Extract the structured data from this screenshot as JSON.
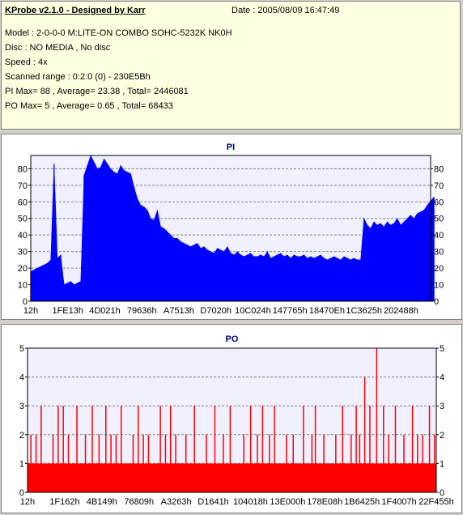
{
  "info": {
    "title": "KProbe v2.1.0 - Designed by Karr",
    "date": "Date : 2005/08/09 16:47:49",
    "lines": [
      "Model : 2-0-0-0 M:LITE-ON COMBO SOHC-5232K NK0H",
      "Disc : NO MEDIA , No disc",
      "Speed : 4x",
      "Scanned range : 0:2:0 (0) - 230E5Bh",
      "PI Max= 88 , Average= 23.38 , Total= 2446081",
      "PO Max= 5 , Average= 0.65 , Total= 68433"
    ]
  },
  "colors": {
    "pi_fill": "#0000ff",
    "po_fill": "#ff0000",
    "title_color": "#000080",
    "plot_bg": "#f0f0ff",
    "grid": "#808080"
  },
  "chart_data": [
    {
      "type": "area",
      "title": "PI",
      "ylim": [
        0,
        88
      ],
      "y_ticks": [
        0,
        10,
        20,
        30,
        40,
        50,
        60,
        70,
        80
      ],
      "x_tick_labels": [
        "12h",
        "1FE13h",
        "4D021h",
        "79636h",
        "A7513h",
        "D7020h",
        "10C024h",
        "147765h",
        "18470Eh",
        "1C3625h",
        "202488h"
      ],
      "grid": true,
      "series": [
        {
          "x": [
            0,
            0.1,
            0.2,
            0.3,
            0.4,
            0.5,
            0.6,
            0.7,
            0.8,
            0.9,
            1,
            1.1,
            1.2,
            1.3,
            1.4,
            1.5,
            1.6,
            1.7,
            1.8,
            1.9,
            2,
            2.1,
            2.2,
            2.3,
            2.4,
            2.5,
            2.6,
            2.7,
            2.8,
            2.9,
            3,
            3.1,
            3.2,
            3.3,
            3.4,
            3.5,
            3.6,
            3.7,
            3.8,
            3.9,
            4,
            4.1,
            4.2,
            4.3,
            4.4,
            4.5,
            4.6,
            4.7,
            4.8,
            4.9,
            5,
            5.1,
            5.2,
            5.3,
            5.4,
            5.5,
            5.6,
            5.7,
            5.8,
            5.9,
            6,
            6.1,
            6.2,
            6.3,
            6.4,
            6.5,
            6.6,
            6.7,
            6.8,
            6.9,
            7,
            7.1,
            7.2,
            7.3,
            7.4,
            7.5,
            7.6,
            7.7,
            7.8,
            7.9,
            8,
            8.1,
            8.2,
            8.3,
            8.4,
            8.5,
            8.6,
            8.7,
            8.8,
            8.9,
            9,
            9.1,
            9.2,
            9.3,
            9.4,
            9.5,
            9.6,
            9.7,
            9.8,
            9.9,
            10,
            10.1,
            10.2,
            10.3,
            10.4,
            10.5,
            10.6,
            10.7,
            10.8,
            10.9,
            11,
            11.1,
            11.2,
            11.3,
            11.4,
            11.5,
            11.6,
            11.7,
            11.8,
            11.9,
            12.1
          ],
          "values": [
            18,
            19,
            20,
            21,
            22,
            23,
            25,
            83,
            26,
            28,
            10,
            11,
            12,
            10,
            11,
            12,
            76,
            82,
            88,
            84,
            80,
            81,
            86,
            83,
            80,
            78,
            77,
            82,
            79,
            78,
            77,
            69,
            62,
            58,
            57,
            55,
            50,
            49,
            55,
            45,
            44,
            42,
            40,
            38,
            38,
            36,
            35,
            34,
            33,
            34,
            35,
            32,
            33,
            31,
            30,
            29,
            32,
            31,
            30,
            33,
            29,
            28,
            30,
            28,
            27,
            28,
            29,
            27,
            27,
            28,
            27,
            30,
            26,
            27,
            28,
            29,
            27,
            28,
            26,
            28,
            27,
            27,
            28,
            26,
            27,
            26,
            27,
            28,
            26,
            25,
            26,
            27,
            26,
            25,
            27,
            26,
            25,
            26,
            25,
            25,
            50,
            46,
            44,
            48,
            46,
            47,
            45,
            48,
            46,
            47,
            50,
            46,
            48,
            50,
            52,
            50,
            53,
            54,
            55,
            58,
            63
          ]
        }
      ]
    },
    {
      "type": "bar",
      "title": "PO",
      "ylim": [
        0,
        5
      ],
      "y_ticks": [
        0,
        1,
        2,
        3,
        4,
        5
      ],
      "x_tick_labels": [
        "12h",
        "1F162h",
        "4B149h",
        "76809h",
        "A3263h",
        "D1641h",
        "104018h",
        "13E000h",
        "178E08h",
        "1B6425h",
        "1F4007h",
        "22F455h"
      ],
      "grid": true,
      "series": [
        {
          "x": [
            0.1,
            0.25,
            0.4,
            0.75,
            0.9,
            1.05,
            1.2,
            1.45,
            1.7,
            1.9,
            2.1,
            2.3,
            2.45,
            2.6,
            2.75,
            3.1,
            3.25,
            3.4,
            3.55,
            3.9,
            4.05,
            4.2,
            4.35,
            4.65,
            4.9,
            5.25,
            5.5,
            5.75,
            5.95,
            6.35,
            6.55,
            6.75,
            6.9,
            7.1,
            7.25,
            7.6,
            7.8,
            8.1,
            8.35,
            8.45,
            8.7,
            9.05,
            9.25,
            9.5,
            9.65,
            9.75,
            9.9,
            10.05,
            10.25,
            10.45,
            10.6,
            10.8,
            11.05,
            11.3,
            11.45,
            11.6,
            11.8,
            11.95
          ],
          "values": [
            2,
            2,
            3,
            2,
            3,
            3,
            2,
            3,
            2,
            3,
            2,
            3,
            2,
            2,
            3,
            2,
            3,
            2,
            2,
            3,
            2,
            3,
            2,
            2,
            3,
            2,
            3,
            2,
            3,
            2,
            3,
            2,
            3,
            2,
            3,
            2,
            2,
            3,
            2,
            3,
            2,
            2,
            3,
            2,
            3,
            2,
            4,
            3,
            5,
            3,
            2,
            3,
            2,
            3,
            2,
            2,
            3,
            2
          ]
        },
        {
          "baseline_value": 1
        }
      ]
    }
  ]
}
